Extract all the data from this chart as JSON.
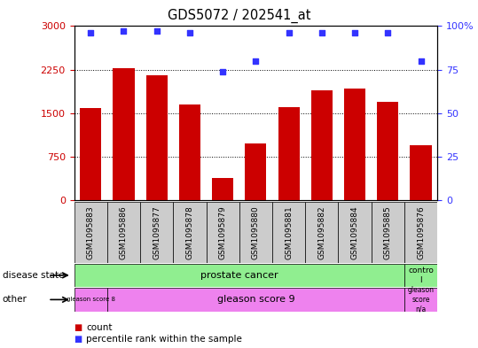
{
  "title": "GDS5072 / 202541_at",
  "samples": [
    "GSM1095883",
    "GSM1095886",
    "GSM1095877",
    "GSM1095878",
    "GSM1095879",
    "GSM1095880",
    "GSM1095881",
    "GSM1095882",
    "GSM1095884",
    "GSM1095885",
    "GSM1095876"
  ],
  "bar_values": [
    1580,
    2270,
    2150,
    1650,
    380,
    980,
    1600,
    1900,
    1930,
    1700,
    950
  ],
  "percentile_values": [
    96,
    97,
    97,
    96,
    74,
    80,
    96,
    96,
    96,
    96,
    80
  ],
  "bar_color": "#cc0000",
  "percentile_color": "#3333ff",
  "ylim_left": [
    0,
    3000
  ],
  "ylim_right": [
    0,
    100
  ],
  "yticks_left": [
    0,
    750,
    1500,
    2250,
    3000
  ],
  "yticks_right": [
    0,
    25,
    50,
    75,
    100
  ],
  "ytick_labels_left": [
    "0",
    "750",
    "1500",
    "2250",
    "3000"
  ],
  "ytick_labels_right": [
    "0",
    "25",
    "50",
    "75",
    "100%"
  ],
  "tick_label_color_left": "#cc0000",
  "tick_label_color_right": "#3333ff",
  "background_color": "#ffffff",
  "sample_box_color": "#cccccc",
  "disease_color": "#90ee90",
  "gleason_color": "#ee82ee",
  "control_color": "#90ee90"
}
